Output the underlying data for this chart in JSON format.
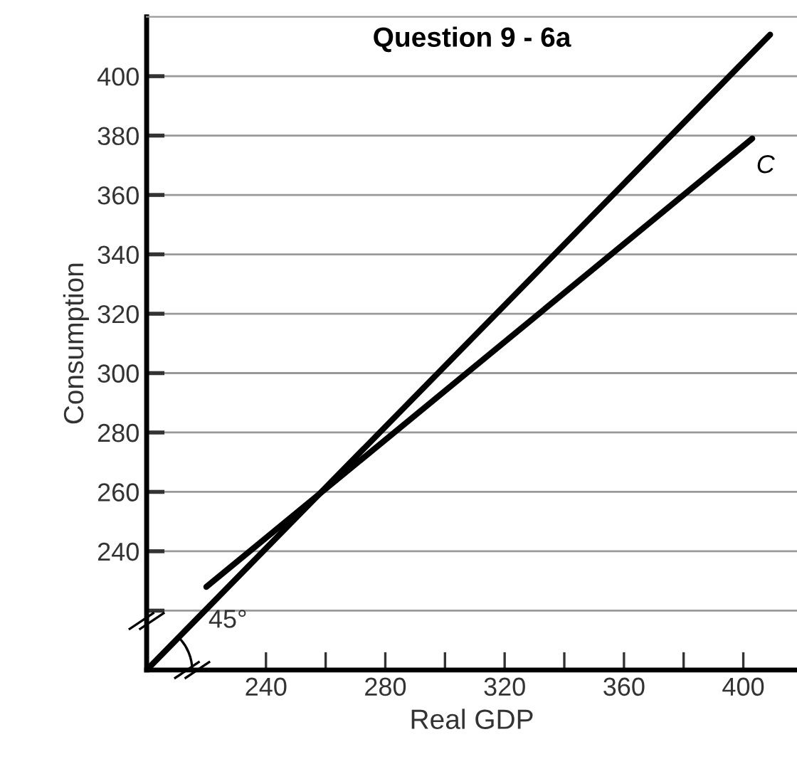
{
  "chart_data": {
    "type": "line",
    "title": "Question 9 - 6a",
    "xlabel": "Real GDP",
    "ylabel": "Consumption",
    "series": [
      {
        "x": [
          200,
          409
        ],
        "values": [
          200,
          414
        ],
        "color": "#000000"
      },
      {
        "name": "C",
        "x": [
          220,
          403
        ],
        "values": [
          228,
          379
        ],
        "color": "#000000"
      }
    ],
    "annotations": [
      "45°"
    ],
    "xlim": [
      200,
      418
    ],
    "ylim": [
      200,
      420
    ],
    "xticks": [
      {
        "value": 240,
        "label": "240"
      },
      {
        "value": 260,
        "label": null
      },
      {
        "value": 280,
        "label": "280"
      },
      {
        "value": 300,
        "label": null
      },
      {
        "value": 320,
        "label": "320"
      },
      {
        "value": 340,
        "label": null
      },
      {
        "value": 360,
        "label": "360"
      },
      {
        "value": 380,
        "label": null
      },
      {
        "value": 400,
        "label": "400"
      }
    ],
    "yticks": [
      {
        "value": 220,
        "label": null
      },
      240,
      260,
      280,
      300,
      320,
      340,
      360,
      380,
      400
    ],
    "grid": "y",
    "legend": false,
    "marker": "none",
    "line_style": "solid"
  }
}
